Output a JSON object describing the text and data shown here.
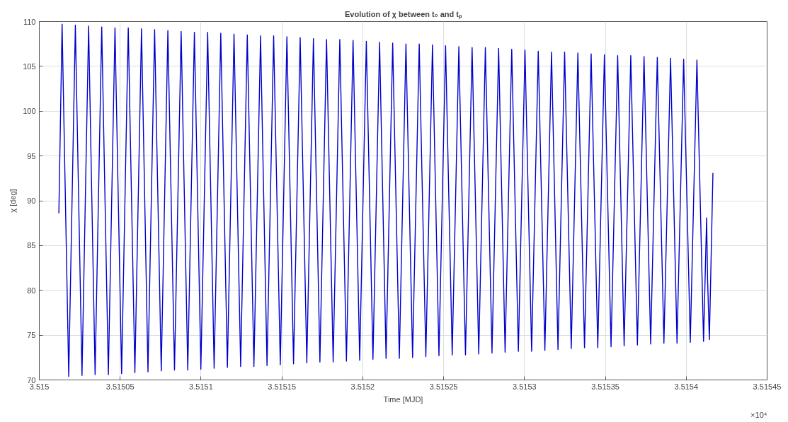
{
  "chart_data": {
    "type": "line",
    "title": "Evolution of χ between t₀ and tₚ",
    "xlabel": "Time [MJD]",
    "ylabel": "χ [deg]",
    "xlim": [
      3.515,
      3.51545
    ],
    "ylim": [
      70,
      110
    ],
    "xticks": [
      3.515,
      3.51505,
      3.5151,
      3.51515,
      3.5152,
      3.51525,
      3.5153,
      3.51535,
      3.5154,
      3.51545
    ],
    "yticks": [
      70,
      75,
      80,
      85,
      90,
      95,
      100,
      105,
      110
    ],
    "grid": true,
    "annotations": [
      "×10⁴"
    ],
    "series": [
      {
        "color": "#0000cc",
        "x": [
          3.5150121,
          3.5150141,
          3.5150182,
          3.5150223,
          3.5150264,
          3.5150305,
          3.5150345,
          3.5150386,
          3.5150427,
          3.5150468,
          3.5150509,
          3.515055,
          3.5150591,
          3.5150632,
          3.5150672,
          3.5150713,
          3.5150754,
          3.5150795,
          3.5150836,
          3.5150877,
          3.5150918,
          3.5150959,
          3.5150999,
          3.5151041,
          3.5151081,
          3.5151122,
          3.5151163,
          3.5151204,
          3.5151245,
          3.5151286,
          3.5151327,
          3.5151368,
          3.5151408,
          3.5151449,
          3.515149,
          3.5151531,
          3.5151572,
          3.5151613,
          3.5151654,
          3.5151695,
          3.5151735,
          3.5151776,
          3.5151817,
          3.5151858,
          3.5151899,
          3.515194,
          3.5151981,
          3.5152022,
          3.5152063,
          3.5152104,
          3.5152144,
          3.5152185,
          3.5152226,
          3.5152267,
          3.5152308,
          3.5152349,
          3.515239,
          3.5152431,
          3.5152471,
          3.5152512,
          3.5152553,
          3.5152594,
          3.5152635,
          3.5152676,
          3.5152717,
          3.5152758,
          3.5152799,
          3.515284,
          3.515288,
          3.5152921,
          3.5152962,
          3.5153003,
          3.5153044,
          3.5153085,
          3.5153126,
          3.5153167,
          3.5153207,
          3.5153248,
          3.5153289,
          3.515333,
          3.5153371,
          3.5153412,
          3.5153453,
          3.5153494,
          3.5153535,
          3.5153576,
          3.5153616,
          3.5153657,
          3.5153698,
          3.5153739,
          3.515378,
          3.5153821,
          3.5153862,
          3.5153903,
          3.5153943,
          3.5153984,
          3.5154025,
          3.5154066,
          3.5154107,
          3.5154126,
          3.5154132,
          3.5154143,
          3.5154165
        ],
        "values": [
          88.6,
          109.7,
          70.4,
          109.6,
          70.5,
          109.5,
          70.6,
          109.4,
          70.6,
          109.3,
          70.7,
          109.3,
          70.8,
          109.2,
          70.9,
          109.1,
          71.0,
          109.0,
          71.1,
          108.9,
          71.1,
          108.8,
          71.2,
          108.8,
          71.3,
          108.7,
          71.4,
          108.6,
          71.5,
          108.5,
          71.5,
          108.4,
          71.6,
          108.4,
          71.7,
          108.3,
          71.8,
          108.2,
          71.9,
          108.1,
          72.0,
          108.0,
          72.0,
          108.0,
          72.1,
          107.9,
          72.2,
          107.8,
          72.3,
          107.7,
          72.4,
          107.6,
          72.4,
          107.5,
          72.5,
          107.5,
          72.6,
          107.4,
          72.7,
          107.3,
          72.8,
          107.2,
          72.8,
          107.1,
          72.9,
          107.1,
          73.0,
          107.0,
          73.1,
          106.9,
          73.2,
          106.8,
          73.2,
          106.7,
          73.3,
          106.6,
          73.4,
          106.6,
          73.5,
          106.5,
          73.6,
          106.4,
          73.6,
          106.3,
          73.7,
          106.2,
          73.8,
          106.2,
          73.9,
          106.1,
          74.0,
          106.0,
          74.1,
          105.9,
          74.1,
          105.8,
          74.2,
          105.7,
          74.3,
          88.1,
          81.2,
          74.5,
          93.1
        ]
      }
    ]
  }
}
